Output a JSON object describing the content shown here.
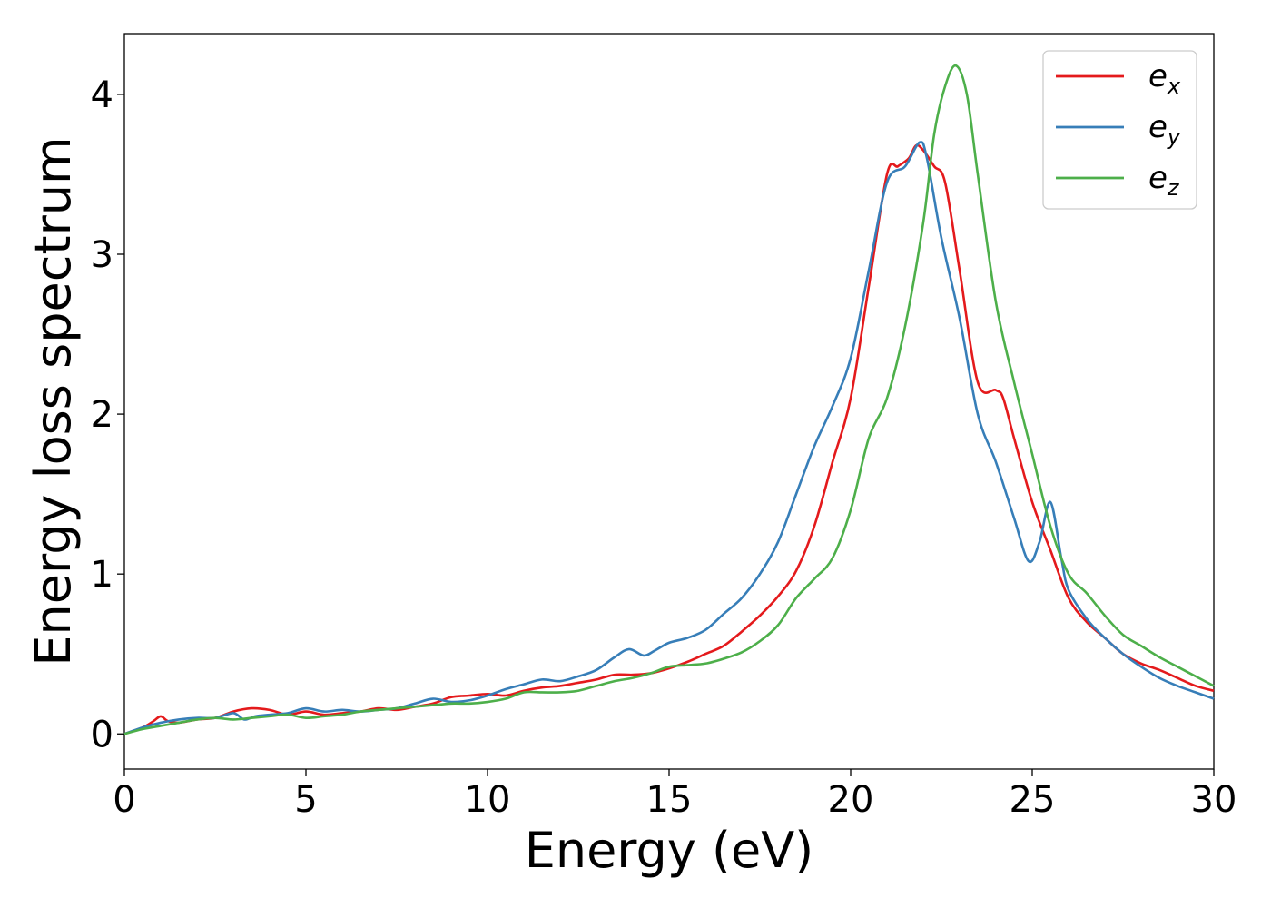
{
  "chart_data": {
    "type": "line",
    "title": "",
    "xlabel": "Energy (eV)",
    "ylabel": "Energy loss spectrum",
    "xlim": [
      0,
      30
    ],
    "ylim": [
      -0.22,
      4.38
    ],
    "xticks": [
      0,
      5,
      10,
      15,
      20,
      25,
      30
    ],
    "yticks": [
      0,
      1,
      2,
      3,
      4
    ],
    "xtick_labels": [
      "0",
      "5",
      "10",
      "15",
      "20",
      "25",
      "30"
    ],
    "ytick_labels": [
      "0",
      "1",
      "2",
      "3",
      "4"
    ],
    "grid": false,
    "legend_position": "top-right",
    "series": [
      {
        "name": "e_x",
        "legend_base": "e",
        "legend_sub": "x",
        "color": "#e41a1c",
        "x": [
          0,
          0.5,
          0.8,
          1.0,
          1.2,
          1.5,
          2,
          2.5,
          3,
          3.5,
          4,
          4.5,
          5,
          5.5,
          6,
          6.5,
          7,
          7.5,
          8,
          8.5,
          9,
          9.5,
          10,
          10.5,
          11,
          11.5,
          12,
          12.5,
          13,
          13.5,
          14,
          14.5,
          15,
          15.5,
          16,
          16.5,
          17,
          17.5,
          18,
          18.5,
          19,
          19.5,
          20,
          20.5,
          21,
          21.3,
          21.6,
          21.8,
          22.0,
          22.3,
          22.6,
          23,
          23.5,
          24,
          24.2,
          24.5,
          25,
          25.5,
          26,
          26.5,
          27,
          27.5,
          28,
          28.5,
          29,
          29.5,
          30
        ],
        "values": [
          0.0,
          0.04,
          0.08,
          0.11,
          0.08,
          0.07,
          0.09,
          0.1,
          0.14,
          0.16,
          0.15,
          0.12,
          0.14,
          0.12,
          0.13,
          0.14,
          0.16,
          0.15,
          0.17,
          0.19,
          0.23,
          0.24,
          0.25,
          0.24,
          0.27,
          0.29,
          0.3,
          0.32,
          0.34,
          0.37,
          0.37,
          0.38,
          0.41,
          0.45,
          0.5,
          0.55,
          0.64,
          0.74,
          0.86,
          1.02,
          1.3,
          1.7,
          2.1,
          2.8,
          3.5,
          3.55,
          3.6,
          3.68,
          3.65,
          3.55,
          3.45,
          2.9,
          2.2,
          2.15,
          2.1,
          1.85,
          1.45,
          1.15,
          0.85,
          0.7,
          0.6,
          0.5,
          0.44,
          0.4,
          0.35,
          0.3,
          0.27
        ]
      },
      {
        "name": "e_y",
        "legend_base": "e",
        "legend_sub": "y",
        "color": "#377eb8",
        "x": [
          0,
          0.5,
          1.0,
          1.5,
          2,
          2.5,
          3,
          3.3,
          3.6,
          4,
          4.5,
          5,
          5.5,
          6,
          6.5,
          7,
          7.5,
          8,
          8.5,
          9,
          9.5,
          10,
          10.5,
          11,
          11.5,
          12,
          12.5,
          13,
          13.5,
          13.9,
          14.3,
          14.6,
          15,
          15.5,
          16,
          16.5,
          17,
          17.5,
          18,
          18.5,
          19,
          19.5,
          20,
          20.5,
          21,
          21.5,
          21.9,
          22.1,
          22.5,
          23,
          23.5,
          24,
          24.5,
          24.9,
          25.2,
          25.5,
          25.8,
          26,
          26.5,
          27,
          27.5,
          28,
          28.5,
          29,
          29.5,
          30
        ],
        "values": [
          0.0,
          0.04,
          0.07,
          0.09,
          0.1,
          0.1,
          0.13,
          0.09,
          0.11,
          0.12,
          0.13,
          0.16,
          0.14,
          0.15,
          0.14,
          0.15,
          0.16,
          0.19,
          0.22,
          0.2,
          0.21,
          0.24,
          0.28,
          0.31,
          0.34,
          0.33,
          0.36,
          0.4,
          0.48,
          0.53,
          0.49,
          0.52,
          0.57,
          0.6,
          0.65,
          0.75,
          0.85,
          1.0,
          1.2,
          1.5,
          1.8,
          2.05,
          2.35,
          2.9,
          3.45,
          3.55,
          3.7,
          3.6,
          3.1,
          2.6,
          2.0,
          1.7,
          1.35,
          1.08,
          1.2,
          1.45,
          1.1,
          0.9,
          0.72,
          0.6,
          0.5,
          0.42,
          0.35,
          0.3,
          0.26,
          0.22
        ]
      },
      {
        "name": "e_z",
        "legend_base": "e",
        "legend_sub": "z",
        "color": "#4daf4a",
        "x": [
          0,
          0.5,
          1,
          1.5,
          2,
          2.5,
          3,
          3.5,
          4,
          4.5,
          5,
          5.5,
          6,
          6.5,
          7,
          7.5,
          8,
          8.5,
          9,
          9.5,
          10,
          10.5,
          11,
          11.5,
          12,
          12.5,
          13,
          13.5,
          14,
          14.5,
          15,
          15.5,
          16,
          16.5,
          17,
          17.5,
          18,
          18.5,
          19,
          19.5,
          20,
          20.5,
          21,
          21.5,
          22,
          22.3,
          22.6,
          22.9,
          23.2,
          23.5,
          24,
          24.5,
          25,
          25.5,
          26,
          26.5,
          27,
          27.5,
          28,
          28.5,
          29,
          29.5,
          30
        ],
        "values": [
          0.0,
          0.03,
          0.05,
          0.07,
          0.09,
          0.1,
          0.09,
          0.1,
          0.11,
          0.12,
          0.1,
          0.11,
          0.12,
          0.14,
          0.15,
          0.16,
          0.17,
          0.18,
          0.19,
          0.19,
          0.2,
          0.22,
          0.26,
          0.26,
          0.26,
          0.27,
          0.3,
          0.33,
          0.35,
          0.38,
          0.42,
          0.43,
          0.44,
          0.47,
          0.51,
          0.58,
          0.68,
          0.85,
          0.97,
          1.1,
          1.4,
          1.85,
          2.1,
          2.55,
          3.2,
          3.75,
          4.05,
          4.18,
          4.0,
          3.5,
          2.7,
          2.2,
          1.75,
          1.3,
          1.0,
          0.88,
          0.74,
          0.62,
          0.55,
          0.48,
          0.42,
          0.36,
          0.3
        ]
      }
    ]
  }
}
